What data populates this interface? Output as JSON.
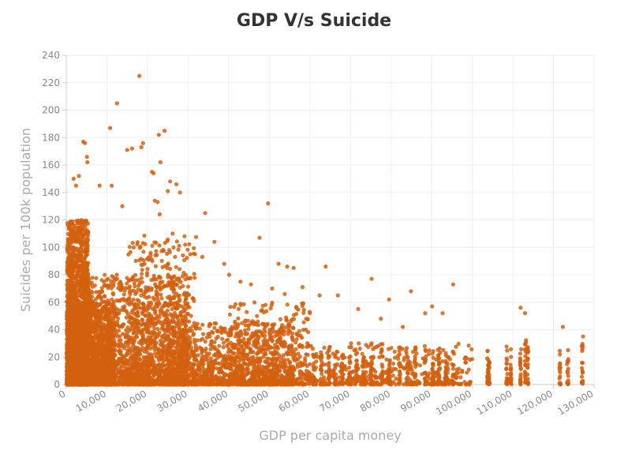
{
  "chart_data": {
    "type": "scatter",
    "title": "GDP V/s Suicide",
    "xlabel": "GDP per capita money",
    "ylabel": "Suicides per 100k population",
    "xlim": [
      0,
      130000
    ],
    "ylim": [
      0,
      240
    ],
    "x_ticks": [
      "0",
      "10,000",
      "20,000",
      "30,000",
      "40,000",
      "50,000",
      "60,000",
      "70,000",
      "80,000",
      "90,000",
      "100,000",
      "110,000",
      "120,000",
      "130,000"
    ],
    "y_ticks": [
      "0",
      "20",
      "40",
      "60",
      "80",
      "100",
      "120",
      "140",
      "160",
      "180",
      "200",
      "220",
      "240"
    ],
    "grid": true,
    "colors": {
      "points": "#d2600f",
      "grid": "#eeeeee",
      "axis": "#cccccc"
    },
    "points": [
      [
        18000,
        225
      ],
      [
        12500,
        205
      ],
      [
        10800,
        187
      ],
      [
        24200,
        185
      ],
      [
        22800,
        182
      ],
      [
        4200,
        177
      ],
      [
        4600,
        176
      ],
      [
        18900,
        176
      ],
      [
        18500,
        173
      ],
      [
        15000,
        171
      ],
      [
        16200,
        172
      ],
      [
        5100,
        166
      ],
      [
        5200,
        162
      ],
      [
        23200,
        162
      ],
      [
        21100,
        155
      ],
      [
        21500,
        154
      ],
      [
        3100,
        152
      ],
      [
        1800,
        150
      ],
      [
        25600,
        148
      ],
      [
        27100,
        146
      ],
      [
        2400,
        145
      ],
      [
        8200,
        145
      ],
      [
        11200,
        145
      ],
      [
        28000,
        140
      ],
      [
        25000,
        141
      ],
      [
        21800,
        134
      ],
      [
        22500,
        133
      ],
      [
        13800,
        130
      ],
      [
        34200,
        125
      ],
      [
        23000,
        124
      ],
      [
        49700,
        132
      ],
      [
        36500,
        104
      ],
      [
        47600,
        107
      ],
      [
        52300,
        88
      ],
      [
        54400,
        86
      ],
      [
        56000,
        85
      ],
      [
        63900,
        86
      ],
      [
        75200,
        77
      ],
      [
        79500,
        62
      ],
      [
        84900,
        68
      ],
      [
        95300,
        73
      ],
      [
        88400,
        52
      ],
      [
        90100,
        57
      ],
      [
        92700,
        52
      ],
      [
        111900,
        56
      ],
      [
        113000,
        52
      ],
      [
        122300,
        42
      ],
      [
        127300,
        35
      ],
      [
        62400,
        65
      ],
      [
        66900,
        65
      ],
      [
        71900,
        55
      ],
      [
        77500,
        48
      ],
      [
        82900,
        42
      ],
      [
        40100,
        80
      ],
      [
        42900,
        75
      ],
      [
        45500,
        73
      ],
      [
        50700,
        70
      ],
      [
        53800,
        66
      ],
      [
        58200,
        71
      ],
      [
        31700,
        95
      ],
      [
        29300,
        102
      ],
      [
        26200,
        110
      ],
      [
        33500,
        93
      ],
      [
        38900,
        88
      ]
    ],
    "clusters": [
      {
        "x": [
          100,
          5500
        ],
        "y": [
          0,
          120
        ],
        "n": 1800
      },
      {
        "x": [
          100,
          12000
        ],
        "y": [
          0,
          60
        ],
        "n": 1600
      },
      {
        "x": [
          5000,
          30000
        ],
        "y": [
          0,
          80
        ],
        "n": 1600
      },
      {
        "x": [
          15000,
          32000
        ],
        "y": [
          0,
          110
        ],
        "n": 500
      },
      {
        "x": [
          25000,
          56000
        ],
        "y": [
          0,
          45
        ],
        "n": 1200
      },
      {
        "x": [
          40000,
          60000
        ],
        "y": [
          0,
          60
        ],
        "n": 350
      },
      {
        "x": [
          56000,
          100000
        ],
        "y": [
          0,
          30
        ],
        "n": 450
      }
    ],
    "columns": [
      {
        "x": 60900,
        "ymax": 22
      },
      {
        "x": 62800,
        "ymax": 24
      },
      {
        "x": 64700,
        "ymax": 26
      },
      {
        "x": 66300,
        "ymax": 25
      },
      {
        "x": 68000,
        "ymax": 22
      },
      {
        "x": 69800,
        "ymax": 22
      },
      {
        "x": 71500,
        "ymax": 26
      },
      {
        "x": 73200,
        "ymax": 23
      },
      {
        "x": 75100,
        "ymax": 30
      },
      {
        "x": 77800,
        "ymax": 28
      },
      {
        "x": 79700,
        "ymax": 26
      },
      {
        "x": 82100,
        "ymax": 28
      },
      {
        "x": 84100,
        "ymax": 22
      },
      {
        "x": 85900,
        "ymax": 28
      },
      {
        "x": 88400,
        "ymax": 28
      },
      {
        "x": 90300,
        "ymax": 26
      },
      {
        "x": 91700,
        "ymax": 22
      },
      {
        "x": 93500,
        "ymax": 24
      },
      {
        "x": 95300,
        "ymax": 28
      },
      {
        "x": 103800,
        "ymax": 25
      },
      {
        "x": 104100,
        "ymax": 22
      },
      {
        "x": 108500,
        "ymax": 30
      },
      {
        "x": 109500,
        "ymax": 27
      },
      {
        "x": 111900,
        "ymax": 30
      },
      {
        "x": 113100,
        "ymax": 34
      },
      {
        "x": 113700,
        "ymax": 28
      },
      {
        "x": 121600,
        "ymax": 26
      },
      {
        "x": 123500,
        "ymax": 30
      },
      {
        "x": 127100,
        "ymax": 32
      }
    ]
  }
}
